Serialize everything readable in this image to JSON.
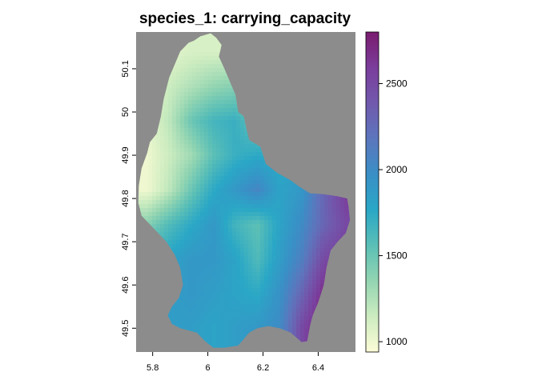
{
  "chart_data": {
    "type": "heatmap",
    "title": "species_1: carrying_capacity",
    "xlabel": "",
    "ylabel": "",
    "xlim": [
      5.74,
      6.535
    ],
    "ylim": [
      49.445,
      50.185
    ],
    "x_ticks": [
      5.8,
      6.0,
      6.2,
      6.4
    ],
    "x_tick_labels": [
      "5.8",
      "6",
      "6.2",
      "6.4"
    ],
    "y_ticks": [
      49.5,
      49.6,
      49.7,
      49.8,
      49.9,
      50.0,
      50.1
    ],
    "y_tick_labels": [
      "49.5",
      "49.6",
      "49.7",
      "49.8",
      "49.9",
      "50",
      "50.1"
    ],
    "background_color": "#8c8c8c",
    "legend": {
      "placement": "right",
      "range": [
        940,
        2800
      ],
      "ticks": [
        1000,
        1500,
        2000,
        2500
      ],
      "tick_labels": [
        "1000",
        "1500",
        "2000",
        "2500"
      ],
      "colors": [
        "#fcfcd6",
        "#cdecc0",
        "#93d5b2",
        "#5bbfb6",
        "#2aa7c6",
        "#3a8fc6",
        "#5c76bd",
        "#7159ad",
        "#7b3d9b",
        "#7a1c6f"
      ]
    },
    "boundary": [
      [
        5.973,
        50.175
      ],
      [
        6.01,
        50.182
      ],
      [
        6.03,
        50.172
      ],
      [
        6.05,
        50.155
      ],
      [
        6.04,
        50.128
      ],
      [
        6.06,
        50.1
      ],
      [
        6.08,
        50.07
      ],
      [
        6.1,
        50.04
      ],
      [
        6.11,
        50.0
      ],
      [
        6.13,
        49.99
      ],
      [
        6.14,
        49.96
      ],
      [
        6.15,
        49.935
      ],
      [
        6.19,
        49.92
      ],
      [
        6.21,
        49.88
      ],
      [
        6.25,
        49.86
      ],
      [
        6.3,
        49.842
      ],
      [
        6.33,
        49.828
      ],
      [
        6.37,
        49.812
      ],
      [
        6.42,
        49.81
      ],
      [
        6.47,
        49.805
      ],
      [
        6.505,
        49.8
      ],
      [
        6.51,
        49.78
      ],
      [
        6.515,
        49.75
      ],
      [
        6.5,
        49.72
      ],
      [
        6.47,
        49.7
      ],
      [
        6.445,
        49.68
      ],
      [
        6.43,
        49.64
      ],
      [
        6.42,
        49.6
      ],
      [
        6.4,
        49.56
      ],
      [
        6.38,
        49.53
      ],
      [
        6.37,
        49.505
      ],
      [
        6.36,
        49.47
      ],
      [
        6.34,
        49.468
      ],
      [
        6.3,
        49.49
      ],
      [
        6.26,
        49.5
      ],
      [
        6.22,
        49.505
      ],
      [
        6.18,
        49.5
      ],
      [
        6.15,
        49.49
      ],
      [
        6.11,
        49.46
      ],
      [
        6.06,
        49.455
      ],
      [
        6.02,
        49.455
      ],
      [
        5.99,
        49.47
      ],
      [
        5.96,
        49.49
      ],
      [
        5.93,
        49.495
      ],
      [
        5.9,
        49.5
      ],
      [
        5.87,
        49.51
      ],
      [
        5.855,
        49.53
      ],
      [
        5.87,
        49.55
      ],
      [
        5.895,
        49.57
      ],
      [
        5.91,
        49.6
      ],
      [
        5.9,
        49.64
      ],
      [
        5.88,
        49.67
      ],
      [
        5.85,
        49.7
      ],
      [
        5.82,
        49.72
      ],
      [
        5.79,
        49.74
      ],
      [
        5.76,
        49.76
      ],
      [
        5.748,
        49.79
      ],
      [
        5.75,
        49.83
      ],
      [
        5.76,
        49.87
      ],
      [
        5.78,
        49.905
      ],
      [
        5.79,
        49.93
      ],
      [
        5.815,
        49.95
      ],
      [
        5.83,
        49.99
      ],
      [
        5.84,
        50.03
      ],
      [
        5.86,
        50.08
      ],
      [
        5.88,
        50.11
      ],
      [
        5.9,
        50.14
      ],
      [
        5.93,
        50.16
      ],
      [
        5.95,
        50.165
      ],
      [
        5.973,
        50.175
      ]
    ],
    "values_grid": {
      "lon": [
        5.78,
        5.86,
        5.94,
        6.02,
        6.1,
        6.18,
        6.26,
        6.34,
        6.42,
        6.5
      ],
      "lat": [
        50.14,
        50.06,
        49.98,
        49.9,
        49.82,
        49.74,
        49.66,
        49.58,
        49.5
      ],
      "z": [
        [
          1000,
          1050,
          1100,
          1100,
          1100,
          1100,
          1100,
          1100,
          1100,
          1100
        ],
        [
          1050,
          1150,
          1250,
          1350,
          1400,
          1350,
          1300,
          1300,
          1300,
          1300
        ],
        [
          1050,
          1200,
          1500,
          1650,
          1700,
          1500,
          1400,
          1400,
          1400,
          1400
        ],
        [
          1000,
          1150,
          1300,
          1550,
          1700,
          1750,
          1750,
          1800,
          1900,
          1900
        ],
        [
          1000,
          1200,
          1500,
          1750,
          1900,
          2050,
          1800,
          1900,
          2300,
          2600
        ],
        [
          1400,
          1600,
          1750,
          1900,
          1650,
          1550,
          1800,
          2000,
          2300,
          2500
        ],
        [
          1700,
          1800,
          1900,
          1900,
          1800,
          1600,
          1850,
          2100,
          2500,
          2600
        ],
        [
          1800,
          1850,
          1900,
          1850,
          1800,
          1750,
          1950,
          2300,
          2700,
          2800
        ],
        [
          1800,
          1850,
          1850,
          1800,
          1850,
          1900,
          2000,
          2500,
          2800,
          2800
        ]
      ]
    }
  }
}
